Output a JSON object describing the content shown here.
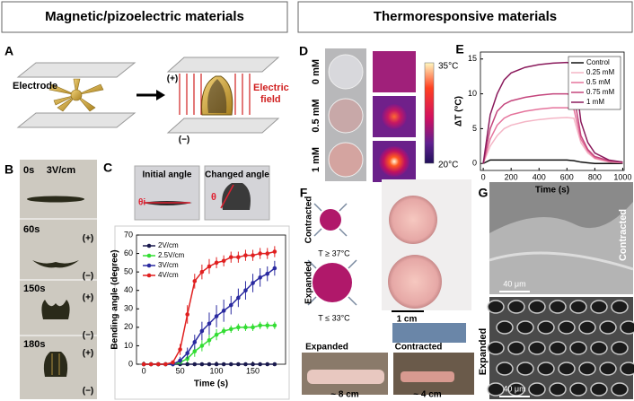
{
  "header": {
    "left": "Magnetic/pizoelectric materials",
    "right": "Thermoresponsive materials"
  },
  "panels": {
    "A": {
      "label": "A",
      "electrode": "Electrode",
      "plus": "(+)",
      "minus": "(−)",
      "field": [
        "Electric",
        "field"
      ]
    },
    "B": {
      "label": "B",
      "field": "3V/cm",
      "frames": [
        {
          "time": "0s"
        },
        {
          "time": "60s",
          "plus": "(+)",
          "minus": "(−)"
        },
        {
          "time": "150s",
          "plus": "(+)",
          "minus": "(−)"
        },
        {
          "time": "180s",
          "plus": "(+)",
          "minus": "(−)"
        }
      ]
    },
    "C": {
      "label": "C",
      "initial": "Initial angle",
      "changed": "Changed angle",
      "theta_i": "θi",
      "theta": "θ"
    },
    "D": {
      "label": "D",
      "rows": [
        "0 mM",
        "0.5 mM",
        "1 mM"
      ],
      "colorbar": [
        "35°C",
        "20°C"
      ]
    },
    "E": {
      "label": "E"
    },
    "F": {
      "label": "F",
      "contracted": "Contracted",
      "contracted_temp": "T ≥ 37°C",
      "expanded": "Expanded",
      "expanded_temp": "T ≤ 33°C",
      "scale": "1 cm",
      "ruler_scale": "1 cm",
      "photo_expanded": "Expanded",
      "photo_contracted": "Contracted",
      "length_expanded": "~ 8 cm",
      "length_contracted": "~ 4 cm"
    },
    "G": {
      "label": "G",
      "top": "Contracted",
      "top_scale": "40 μm",
      "bottom": "Expanded",
      "bottom_scale": "40 μm"
    }
  },
  "chart_data": [
    {
      "type": "line",
      "x_label": "Time (s)",
      "y_label": "Bending angle (degree)",
      "x": [
        0,
        10,
        20,
        30,
        40,
        50,
        60,
        70,
        80,
        90,
        100,
        110,
        120,
        130,
        140,
        150,
        160,
        170,
        180
      ],
      "xlim": [
        -10,
        195
      ],
      "xticks": [
        0,
        50,
        100,
        150
      ],
      "ylim": [
        0,
        70
      ],
      "yticks": [
        0,
        10,
        20,
        30,
        40,
        50,
        60,
        70
      ],
      "grid": false,
      "markers": true,
      "legend": "upper left",
      "series": [
        {
          "name": "2V/cm",
          "color": "#1a1a4e",
          "values": [
            0,
            0,
            0,
            0,
            0,
            0,
            0,
            0,
            0,
            0,
            0,
            0,
            0,
            0,
            0,
            0,
            0,
            0,
            0
          ],
          "errors": [
            1,
            1,
            1,
            1,
            1,
            1,
            1,
            1,
            1,
            1,
            1,
            1,
            1,
            1,
            1,
            1,
            1,
            1,
            1
          ]
        },
        {
          "name": "2.5V/cm",
          "color": "#33dd33",
          "values": [
            0,
            0,
            0,
            0,
            0,
            1,
            3,
            7,
            10,
            13,
            16,
            18,
            19,
            20,
            20,
            20,
            21,
            21,
            21
          ],
          "errors": [
            0,
            0,
            0,
            0,
            1,
            1,
            2,
            3,
            3,
            3,
            3,
            2,
            2,
            2,
            2,
            2,
            2,
            2,
            2
          ]
        },
        {
          "name": "3V/cm",
          "color": "#2a2aa0",
          "values": [
            0,
            0,
            0,
            0,
            0,
            2,
            6,
            12,
            18,
            22,
            26,
            29,
            32,
            36,
            40,
            44,
            47,
            49,
            52
          ],
          "errors": [
            0,
            0,
            0,
            0,
            1,
            2,
            3,
            4,
            5,
            6,
            6,
            6,
            5,
            5,
            5,
            5,
            5,
            4,
            4
          ]
        },
        {
          "name": "4V/cm",
          "color": "#e02020",
          "values": [
            0,
            0,
            0,
            0,
            1,
            8,
            27,
            45,
            50,
            53,
            55,
            56,
            58,
            58,
            59,
            59,
            60,
            60,
            61
          ],
          "errors": [
            0,
            0,
            0,
            0,
            1,
            3,
            5,
            4,
            4,
            4,
            3,
            3,
            3,
            3,
            3,
            3,
            3,
            3,
            3
          ]
        }
      ]
    },
    {
      "type": "line",
      "x_label": "Time (s)",
      "y_label": "ΔT (°C)",
      "x": [
        0,
        50,
        100,
        150,
        200,
        300,
        400,
        500,
        600,
        650,
        700,
        750,
        800,
        900,
        1000
      ],
      "xlim": [
        -20,
        1010
      ],
      "xticks": [
        0,
        200,
        400,
        600,
        800,
        1000
      ],
      "ylim": [
        -1,
        16
      ],
      "yticks": [
        0,
        5,
        10,
        15
      ],
      "grid": false,
      "markers": false,
      "legend": "upper right",
      "series": [
        {
          "name": "Control",
          "color": "#111111",
          "values": [
            0,
            0.5,
            0.5,
            0.5,
            0.5,
            0.5,
            0.5,
            0.5,
            0.5,
            0.4,
            0.2,
            0.1,
            0,
            0,
            0
          ]
        },
        {
          "name": "0.25 mM",
          "color": "#f4b6c6",
          "values": [
            0,
            2.5,
            4,
            5,
            5.5,
            6,
            6.3,
            6.5,
            6.6,
            6.5,
            3,
            1.5,
            0.7,
            0.2,
            0.1
          ]
        },
        {
          "name": "0.5 mM",
          "color": "#e5749c",
          "values": [
            0,
            3.5,
            5.5,
            6.5,
            7,
            7.5,
            7.8,
            8,
            8,
            7.8,
            3.5,
            1.8,
            0.8,
            0.3,
            0.1
          ]
        },
        {
          "name": "0.75 mM",
          "color": "#c4457c",
          "values": [
            0,
            5,
            7.5,
            8.5,
            9,
            9.5,
            9.8,
            10,
            10,
            9.8,
            4,
            2,
            1,
            0.4,
            0.2
          ]
        },
        {
          "name": "1 mM",
          "color": "#8a1a5c",
          "values": [
            0,
            7,
            10,
            12,
            13,
            13.8,
            14.2,
            14.4,
            14.5,
            14.3,
            6,
            3,
            1.5,
            0.5,
            0.2
          ]
        }
      ]
    }
  ]
}
